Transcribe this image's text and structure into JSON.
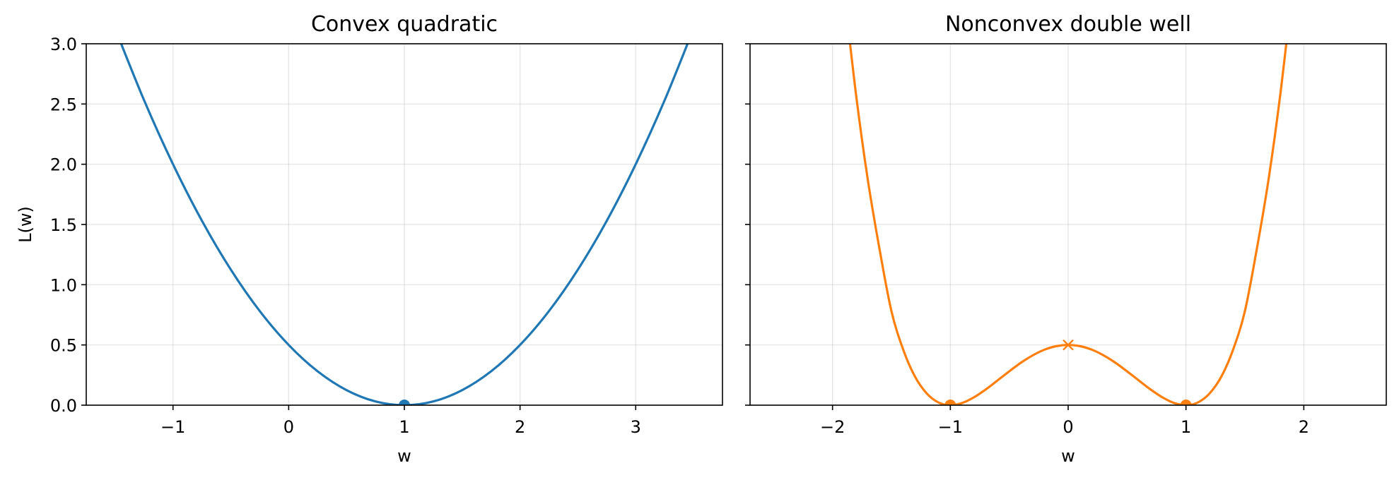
{
  "chart_data": [
    {
      "type": "line",
      "title": "Convex quadratic",
      "xlabel": "w",
      "ylabel": "L(w)",
      "xlim": [
        -1.75,
        3.75
      ],
      "ylim": [
        0,
        3
      ],
      "xticks": [
        -1,
        0,
        1,
        2,
        3
      ],
      "xtick_labels": [
        "−1",
        "0",
        "1",
        "2",
        "3"
      ],
      "yticks": [
        0,
        0.5,
        1,
        1.5,
        2,
        2.5,
        3
      ],
      "ytick_labels": [
        "0.0",
        "0.5",
        "1.0",
        "1.5",
        "2.0",
        "2.5",
        "3.0"
      ],
      "grid": true,
      "series": [
        {
          "color": "#1f77b4",
          "x": [
            -1.5,
            -1.25,
            -1.0,
            -0.75,
            -0.5,
            -0.25,
            0.0,
            0.25,
            0.5,
            0.75,
            1.0,
            1.25,
            1.5,
            1.75,
            2.0,
            2.25,
            2.5,
            2.75,
            3.0,
            3.25,
            3.5
          ],
          "y": [
            3.125,
            2.531,
            2.0,
            1.531,
            1.125,
            0.781,
            0.5,
            0.281,
            0.125,
            0.031,
            0.0,
            0.031,
            0.125,
            0.281,
            0.5,
            0.781,
            1.125,
            1.531,
            2.0,
            2.531,
            3.125
          ]
        }
      ],
      "markers": [
        {
          "type": "dot",
          "x": 1,
          "y": 0,
          "color": "#1f77b4"
        }
      ]
    },
    {
      "type": "line",
      "title": "Nonconvex double well",
      "xlabel": "w",
      "ylabel": "",
      "xlim": [
        -2.7,
        2.7
      ],
      "ylim": [
        0,
        3
      ],
      "xticks": [
        -2,
        -1,
        0,
        1,
        2
      ],
      "xtick_labels": [
        "−2",
        "−1",
        "0",
        "1",
        "2"
      ],
      "yticks": [
        0,
        0.5,
        1,
        1.5,
        2,
        2.5,
        3
      ],
      "ytick_labels": [
        "",
        "",
        "",
        "",
        "",
        "",
        ""
      ],
      "grid": true,
      "series": [
        {
          "color": "#ff7f0e",
          "x": [
            -1.9,
            -1.8,
            -1.7,
            -1.6,
            -1.5,
            -1.4,
            -1.3,
            -1.2,
            -1.1,
            -1.0,
            -0.9,
            -0.8,
            -0.7,
            -0.6,
            -0.5,
            -0.4,
            -0.3,
            -0.2,
            -0.1,
            0.0,
            0.1,
            0.2,
            0.3,
            0.4,
            0.5,
            0.6,
            0.7,
            0.8,
            0.9,
            1.0,
            1.1,
            1.2,
            1.3,
            1.4,
            1.5,
            1.6,
            1.7,
            1.8,
            1.9
          ],
          "y": [
            3.423,
            2.575,
            1.868,
            1.29,
            0.781,
            0.461,
            0.237,
            0.097,
            0.022,
            0.0,
            0.018,
            0.065,
            0.13,
            0.205,
            0.281,
            0.353,
            0.414,
            0.461,
            0.49,
            0.5,
            0.49,
            0.461,
            0.414,
            0.353,
            0.281,
            0.205,
            0.13,
            0.065,
            0.018,
            0.0,
            0.022,
            0.097,
            0.237,
            0.461,
            0.781,
            1.29,
            1.868,
            2.575,
            3.423
          ]
        }
      ],
      "markers": [
        {
          "type": "dot",
          "x": -1,
          "y": 0,
          "color": "#ff7f0e"
        },
        {
          "type": "dot",
          "x": 1,
          "y": 0,
          "color": "#ff7f0e"
        },
        {
          "type": "x",
          "x": 0,
          "y": 0.5,
          "color": "#ff7f0e"
        }
      ]
    }
  ]
}
